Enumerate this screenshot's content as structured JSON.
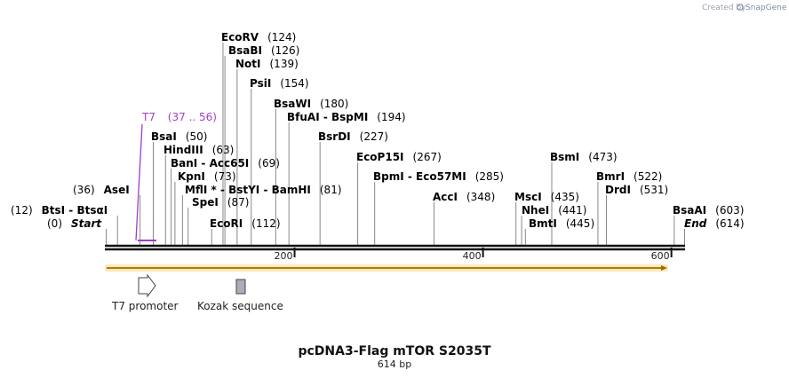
{
  "branding": {
    "prefix": "Created by",
    "name": "SnapGene"
  },
  "plasmid": {
    "name": "pcDNA3-Flag mTOR S2035T",
    "length": "614 bp",
    "total_bp": 614
  },
  "ruler": {
    "ticks": [
      200,
      400,
      600
    ]
  },
  "features": [
    {
      "name": "T7 promoter",
      "shape": "arrow"
    },
    {
      "name": "Kozak sequence",
      "shape": "box"
    }
  ],
  "primer": {
    "name": "T7",
    "range": "(37 .. 56)"
  },
  "sites": [
    {
      "name": "EcoRV",
      "pos": "(124)",
      "bp": 124
    },
    {
      "name": "BsaBI",
      "pos": "(126)",
      "bp": 126
    },
    {
      "name": "NotI",
      "pos": "(139)",
      "bp": 139
    },
    {
      "name": "PsiI",
      "pos": "(154)",
      "bp": 154
    },
    {
      "name": "BsaWI",
      "pos": "(180)",
      "bp": 180
    },
    {
      "name": "BfuAI - BspMI",
      "pos": "(194)",
      "bp": 194
    },
    {
      "name": "BsrDI",
      "pos": "(227)",
      "bp": 227
    },
    {
      "name": "BsaI",
      "pos": "(50)",
      "bp": 50
    },
    {
      "name": "HindIII",
      "pos": "(63)",
      "bp": 63
    },
    {
      "name": "BanI - Acc65I",
      "pos": "(69)",
      "bp": 69
    },
    {
      "name": "KpnI",
      "pos": "(73)",
      "bp": 73
    },
    {
      "name": "MflI * - BstYI - BamHI",
      "pos": "(81)",
      "bp": 81
    },
    {
      "name": "SpeI",
      "pos": "(87)",
      "bp": 87
    },
    {
      "name": "EcoRI",
      "pos": "(112)",
      "bp": 112
    },
    {
      "name": "AseI",
      "pos": "(36)",
      "bp": 36
    },
    {
      "name": "BtsI - BtsαI",
      "pos": "(12)",
      "bp": 12
    },
    {
      "name": "Start",
      "pos": "(0)",
      "bp": 0
    },
    {
      "name": "EcoP15I",
      "pos": "(267)",
      "bp": 267
    },
    {
      "name": "BpmI - Eco57MI",
      "pos": "(285)",
      "bp": 285
    },
    {
      "name": "AccI",
      "pos": "(348)",
      "bp": 348
    },
    {
      "name": "MscI",
      "pos": "(435)",
      "bp": 435
    },
    {
      "name": "NheI",
      "pos": "(441)",
      "bp": 441
    },
    {
      "name": "BmtI",
      "pos": "(445)",
      "bp": 445
    },
    {
      "name": "BsmI",
      "pos": "(473)",
      "bp": 473
    },
    {
      "name": "BmrI",
      "pos": "(522)",
      "bp": 522
    },
    {
      "name": "DrdI",
      "pos": "(531)",
      "bp": 531
    },
    {
      "name": "BsaAI",
      "pos": "(603)",
      "bp": 603
    },
    {
      "name": "End",
      "pos": "(614)",
      "bp": 614
    }
  ]
}
